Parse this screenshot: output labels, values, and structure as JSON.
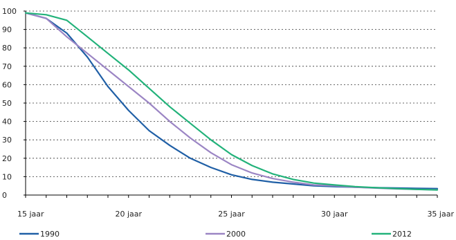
{
  "chart_data": {
    "type": "line",
    "title": "",
    "xlabel": "",
    "ylabel": "",
    "xlim": [
      15,
      35
    ],
    "ylim": [
      0,
      100
    ],
    "x_ticks": [
      15,
      20,
      25,
      30,
      35
    ],
    "x_tick_labels": [
      "15 jaar",
      "20 jaar",
      "25 jaar",
      "30 jaar",
      "35 jaar"
    ],
    "y_ticks": [
      0,
      10,
      20,
      30,
      40,
      50,
      60,
      70,
      80,
      90,
      100
    ],
    "y_tick_labels": [
      "0",
      "10",
      "20",
      "30",
      "40",
      "50",
      "60",
      "70",
      "80",
      "90",
      "100"
    ],
    "grid": "horizontal dotted",
    "legend_position": "bottom",
    "x": [
      15,
      16,
      17,
      18,
      19,
      20,
      21,
      22,
      23,
      24,
      25,
      26,
      27,
      28,
      29,
      30,
      31,
      32,
      33,
      34,
      35
    ],
    "series": [
      {
        "name": "1990",
        "color": "#1f5fa6",
        "values": [
          99,
          96,
          88,
          75,
          59,
          46,
          35,
          27,
          20,
          15,
          11,
          8.5,
          7,
          6,
          5,
          4.6,
          4.3,
          4,
          3.8,
          3.6,
          3.5
        ]
      },
      {
        "name": "2000",
        "color": "#9b85c4",
        "values": [
          99,
          96,
          86,
          77,
          68,
          59,
          50,
          40,
          31,
          23,
          16.5,
          12,
          9,
          7,
          5.5,
          5,
          4.3,
          3.8,
          3.4,
          3.1,
          2.9
        ]
      },
      {
        "name": "2012",
        "color": "#22b27a",
        "values": [
          99,
          98,
          95,
          86,
          77,
          68,
          58,
          48,
          39,
          30,
          22,
          16,
          11.5,
          8.5,
          6.5,
          5.5,
          4.6,
          4,
          3.5,
          3.1,
          2.8
        ]
      }
    ]
  }
}
